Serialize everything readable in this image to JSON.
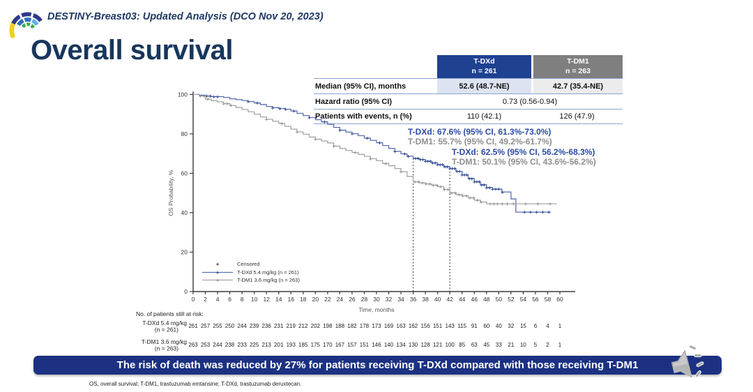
{
  "slide": {
    "header_title": "DESTINY-Breast03: Updated Analysis (DCO Nov 20, 2023)",
    "title": "Overall survival",
    "banner_text": "The risk of death was reduced by 27% for patients receiving T-DXd compared with those receiving T-DM1",
    "banner_bg": "#1c3182",
    "footnote": "OS, overall survival; T-DM1, trastuzumab emtansine; T-DXd, trastuzumab deruxtecan."
  },
  "summary_table": {
    "columns": [
      {
        "label": "T-DXd",
        "sub": "n = 261",
        "bg": "#1e4191",
        "cell_bg": "#dde3f1"
      },
      {
        "label": "T-DM1",
        "sub": "n = 263",
        "bg": "#7f7f7f",
        "cell_bg": "#ececec"
      }
    ],
    "rows": [
      {
        "label": "Median (95% CI), months",
        "values": [
          "52.6 (48.7-NE)",
          "42.7 (35.4-NE)"
        ]
      },
      {
        "label": "Hazard ratio (95% CI)",
        "span_value": "0.73 (0.56-0.94)"
      },
      {
        "label": "Patients with events, n (%)",
        "values": [
          "110 (42.1)",
          "126 (47.9)"
        ]
      }
    ]
  },
  "chart_data": {
    "type": "line",
    "subtype": "kaplan-meier-step",
    "xlabel": "Time, months",
    "ylabel": "OS Probability, %",
    "xlim": [
      0,
      60
    ],
    "xtick_step": 2,
    "ylim": [
      0,
      100
    ],
    "yticks": [
      0,
      20,
      40,
      60,
      80,
      100
    ],
    "grid": false,
    "landmark_lines": [
      36,
      42
    ],
    "legend": {
      "position": "inside-bottom-left",
      "censored_symbol": "+",
      "censored_label": "Censored"
    },
    "series": [
      {
        "name": "T-DXd 5.4 mg/kg (n = 261)",
        "color": "#5a6fae",
        "censor_color": "#26408c",
        "points": [
          [
            0,
            100
          ],
          [
            1,
            99.6
          ],
          [
            2,
            99.2
          ],
          [
            3,
            98.9
          ],
          [
            5,
            98.5
          ],
          [
            6,
            97.8
          ],
          [
            7,
            97.4
          ],
          [
            8,
            96.9
          ],
          [
            9,
            96.4
          ],
          [
            10,
            95.7
          ],
          [
            11,
            94.9
          ],
          [
            12,
            93.9
          ],
          [
            13,
            93.3
          ],
          [
            14,
            92.9
          ],
          [
            15,
            92.5
          ],
          [
            16,
            91.6
          ],
          [
            17,
            90.4
          ],
          [
            18,
            89.3
          ],
          [
            19,
            88.3
          ],
          [
            20,
            87.2
          ],
          [
            21,
            86.1
          ],
          [
            22,
            84.9
          ],
          [
            23,
            83.3
          ],
          [
            24,
            81.9
          ],
          [
            25,
            80.9
          ],
          [
            26,
            80.1
          ],
          [
            27,
            79.1
          ],
          [
            28,
            77.9
          ],
          [
            29,
            76.7
          ],
          [
            30,
            75.5
          ],
          [
            31,
            74.1
          ],
          [
            32,
            72.6
          ],
          [
            33,
            71.1
          ],
          [
            34,
            69.9
          ],
          [
            35,
            68.7
          ],
          [
            36,
            67.6
          ],
          [
            37,
            67.0
          ],
          [
            38,
            66.2
          ],
          [
            39,
            65.3
          ],
          [
            40,
            64.4
          ],
          [
            41,
            63.4
          ],
          [
            42,
            62.5
          ],
          [
            43,
            61.0
          ],
          [
            44,
            59.2
          ],
          [
            45,
            57.4
          ],
          [
            46,
            55.8
          ],
          [
            47,
            54.2
          ],
          [
            48,
            52.8
          ],
          [
            49,
            52.0
          ],
          [
            50.5,
            50.5
          ],
          [
            52,
            47.0
          ],
          [
            52.8,
            40.3
          ],
          [
            58.5,
            40.3
          ]
        ],
        "censor_times": [
          2.2,
          2.8,
          3.4,
          4.0,
          9.0,
          10.5,
          13.0,
          14.2,
          15.1,
          16.5,
          19.0,
          21.5,
          24.0,
          26.0,
          28.5,
          30.5,
          33.0,
          34.6,
          35.2,
          36.4,
          36.8,
          37.2,
          37.6,
          38.0,
          38.4,
          38.8,
          39.2,
          39.6,
          40.0,
          40.4,
          40.8,
          41.2,
          41.6,
          42.0,
          42.4,
          42.8,
          43.2,
          43.6,
          44.0,
          44.4,
          44.8,
          45.2,
          45.6,
          46.0,
          46.4,
          46.8,
          47.2,
          47.6,
          48.0,
          48.5,
          49.0,
          49.5,
          50.0,
          50.6,
          54.2,
          55.2,
          56.2,
          57.2,
          58.2
        ]
      },
      {
        "name": "T-DM1 3.6 mg/kg (n = 263)",
        "color": "#a6a6a6",
        "censor_color": "#8f8f8f",
        "points": [
          [
            0,
            100
          ],
          [
            1,
            99.2
          ],
          [
            2,
            97.6
          ],
          [
            3,
            96.8
          ],
          [
            4,
            96.2
          ],
          [
            5,
            95.4
          ],
          [
            6,
            94.4
          ],
          [
            7,
            93.4
          ],
          [
            8,
            92.4
          ],
          [
            9,
            91.2
          ],
          [
            10,
            90.0
          ],
          [
            11,
            88.6
          ],
          [
            12,
            87.4
          ],
          [
            13,
            86.4
          ],
          [
            14,
            85.3
          ],
          [
            15,
            83.8
          ],
          [
            16,
            82.4
          ],
          [
            17,
            81.0
          ],
          [
            18,
            79.8
          ],
          [
            19,
            78.4
          ],
          [
            20,
            77.3
          ],
          [
            21,
            76.4
          ],
          [
            22,
            75.4
          ],
          [
            23,
            73.8
          ],
          [
            24,
            72.6
          ],
          [
            25,
            71.6
          ],
          [
            26,
            70.6
          ],
          [
            27,
            69.6
          ],
          [
            28,
            68.6
          ],
          [
            29,
            67.4
          ],
          [
            30,
            66.4
          ],
          [
            31,
            65.0
          ],
          [
            32,
            63.8
          ],
          [
            33,
            62.4
          ],
          [
            34,
            60.8
          ],
          [
            35,
            58.4
          ],
          [
            36,
            55.7
          ],
          [
            37,
            55.2
          ],
          [
            38,
            54.6
          ],
          [
            39,
            54.0
          ],
          [
            40,
            53.2
          ],
          [
            41,
            51.8
          ],
          [
            42,
            50.1
          ],
          [
            43,
            49.2
          ],
          [
            44,
            48.6
          ],
          [
            45,
            47.6
          ],
          [
            46,
            46.4
          ],
          [
            47,
            45.4
          ],
          [
            48,
            44.5
          ],
          [
            59.5,
            44.5
          ]
        ],
        "censor_times": [
          1.2,
          1.8,
          2.4,
          5.0,
          5.6,
          6.2,
          12.0,
          14.5,
          17.0,
          20.0,
          23.0,
          26.5,
          29.0,
          31.5,
          34.0,
          36.3,
          36.9,
          37.5,
          38.1,
          38.7,
          39.3,
          39.9,
          40.5,
          41.1,
          41.7,
          42.3,
          42.9,
          43.5,
          44.1,
          44.7,
          45.3,
          45.9,
          46.5,
          47.1,
          48.6,
          49.2,
          49.8,
          50.6,
          51.4,
          52.4,
          54.4,
          56.4,
          58.4
        ]
      }
    ],
    "annotations": [
      {
        "text": "T-DXd: 67.6% (95% CI, 61.3%-73.0%)",
        "color": "#2b4ba5",
        "x": 465,
        "y": 73
      },
      {
        "text": "T-DM1: 55.7% (95% CI, 49.2%-61.7%)",
        "color": "#8e8e8e",
        "x": 465,
        "y": 87
      },
      {
        "text": "T-DXd: 62.5% (95% CI, 56.2%-68.3%)",
        "color": "#2b4ba5",
        "x": 528,
        "y": 102
      },
      {
        "text": "T-DM1: 50.1% (95% CI, 43.6%-56.2%)",
        "color": "#8e8e8e",
        "x": 528,
        "y": 116
      }
    ],
    "at_risk": {
      "header": "No. of patients still at risk:",
      "times": [
        0,
        2,
        4,
        6,
        8,
        10,
        12,
        14,
        16,
        18,
        20,
        22,
        24,
        26,
        28,
        30,
        32,
        34,
        36,
        38,
        40,
        42,
        44,
        46,
        48,
        50,
        52,
        54,
        56,
        58,
        60
      ],
      "rows": [
        {
          "label": "T-DXd 5.4 mg/kg",
          "sublabel": "(n = 261)",
          "values": [
            261,
            257,
            255,
            250,
            244,
            239,
            236,
            231,
            219,
            212,
            202,
            198,
            188,
            182,
            178,
            173,
            169,
            163,
            162,
            156,
            151,
            143,
            115,
            91,
            60,
            40,
            32,
            15,
            6,
            4,
            1
          ]
        },
        {
          "label": "T-DM1 3.6 mg/kg",
          "sublabel": "(n = 263)",
          "values": [
            263,
            253,
            244,
            238,
            233,
            225,
            213,
            201,
            193,
            185,
            175,
            170,
            167,
            157,
            151,
            146,
            140,
            134,
            130,
            128,
            121,
            100,
            85,
            63,
            45,
            33,
            21,
            10,
            5,
            2,
            1
          ]
        }
      ]
    }
  }
}
